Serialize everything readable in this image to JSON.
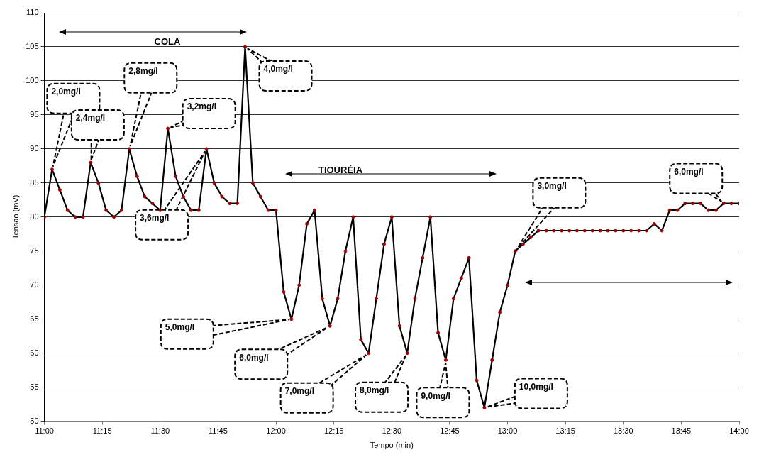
{
  "chart_data": {
    "type": "line",
    "xlabel": "Tempo (min)",
    "ylabel": "Tensão (mV)",
    "x": [
      11,
      11.0333,
      11.0667,
      11.1,
      11.1333,
      11.1667,
      11.2,
      11.2333,
      11.2667,
      11.3,
      11.3333,
      11.3667,
      11.4,
      11.4333,
      11.4667,
      11.5,
      11.5333,
      11.5667,
      11.6,
      11.6333,
      11.6667,
      11.7,
      11.7333,
      11.7667,
      11.8,
      11.8333,
      11.8667,
      11.9,
      11.9333,
      11.9667,
      12,
      12.0333,
      12.0667,
      12.1,
      12.1333,
      12.1667,
      12.2,
      12.2333,
      12.2667,
      12.3,
      12.3333,
      12.3667,
      12.4,
      12.4333,
      12.4667,
      12.5,
      12.5333,
      12.5667,
      12.6,
      12.6333,
      12.6667,
      12.7,
      12.7333,
      12.7667,
      12.8,
      12.8333,
      12.8667,
      12.9,
      12.9333,
      12.9667,
      13,
      13.0333,
      13.0667,
      13.1,
      13.1333,
      13.1667,
      13.2,
      13.2333,
      13.2667,
      13.3,
      13.3333,
      13.3667,
      13.4,
      13.4333,
      13.4667,
      13.5,
      13.5333,
      13.5667,
      13.6,
      13.6333,
      13.6667,
      13.7,
      13.7333,
      13.7667,
      13.8,
      13.8333,
      13.8667,
      13.9,
      13.9333,
      13.9667,
      14
    ],
    "series": [
      {
        "color": "#000000",
        "values": [
          80,
          87,
          84,
          81,
          80,
          80,
          88,
          85,
          81,
          80,
          81,
          90,
          86,
          83,
          82,
          81,
          93,
          86,
          83,
          81,
          81,
          90,
          85,
          83,
          82,
          82,
          105,
          85,
          83,
          81,
          81,
          69,
          65,
          70,
          79,
          81,
          68,
          64,
          68,
          75,
          80,
          62,
          60,
          68,
          76,
          80,
          64,
          60,
          68,
          74,
          80,
          63,
          59,
          68,
          71,
          74,
          56,
          52,
          59,
          66,
          70,
          75,
          76,
          77,
          78,
          78,
          78,
          78,
          78,
          78,
          78,
          78,
          78,
          78,
          78,
          78,
          78,
          78,
          78,
          79,
          78,
          81,
          81,
          82,
          82,
          82,
          81,
          81,
          82,
          82,
          82
        ]
      }
    ],
    "xlim": [
      11,
      14
    ],
    "xticks": [
      {
        "value": 11,
        "label": "11:00"
      },
      {
        "value": 11.25,
        "label": "11:15"
      },
      {
        "value": 11.5,
        "label": "11:30"
      },
      {
        "value": 11.75,
        "label": "11:45"
      },
      {
        "value": 12,
        "label": "12:00"
      },
      {
        "value": 12.25,
        "label": "12:15"
      },
      {
        "value": 12.5,
        "label": "12:30"
      },
      {
        "value": 12.75,
        "label": "12:45"
      },
      {
        "value": 13,
        "label": "13:00"
      },
      {
        "value": 13.25,
        "label": "13:15"
      },
      {
        "value": 13.5,
        "label": "13:30"
      },
      {
        "value": 13.75,
        "label": "13:45"
      },
      {
        "value": 14,
        "label": "14:00"
      }
    ],
    "ylim": [
      50,
      110
    ],
    "yticks": [
      50,
      55,
      60,
      65,
      70,
      75,
      80,
      85,
      90,
      95,
      100,
      105,
      110
    ],
    "grid": "y",
    "legend": false,
    "marker": "circle",
    "line_style": "solid",
    "annotations": [
      "COLA",
      "TIOURÉIA",
      {
        "text": "2,0mg/l",
        "x": 11.0333,
        "y": 87
      },
      {
        "text": "2,4mg/l",
        "x": 11.2,
        "y": 88
      },
      {
        "text": "2,8mg/l",
        "x": 11.3667,
        "y": 90
      },
      {
        "text": "3,2mg/l",
        "x": 11.5333,
        "y": 93
      },
      {
        "text": "3,6mg/l",
        "x": 11.7,
        "y": 90
      },
      {
        "text": "4,0mg/l",
        "x": 11.8667,
        "y": 105
      },
      {
        "text": "5,0mg/l",
        "x": 12.0667,
        "y": 65
      },
      {
        "text": "6,0mg/l",
        "x": 12.2333,
        "y": 64
      },
      {
        "text": "7,0mg/l",
        "x": 12.4,
        "y": 60
      },
      {
        "text": "8,0mg/l",
        "x": 12.5667,
        "y": 60
      },
      {
        "text": "9,0mg/l",
        "x": 12.7333,
        "y": 59
      },
      {
        "text": "10,0mg/l",
        "x": 12.9,
        "y": 52
      },
      {
        "text": "3,0mg/l",
        "x": 13.0333,
        "y": 75
      },
      {
        "text": "6,0mg/l",
        "x": 13.9333,
        "y": 82
      }
    ]
  }
}
